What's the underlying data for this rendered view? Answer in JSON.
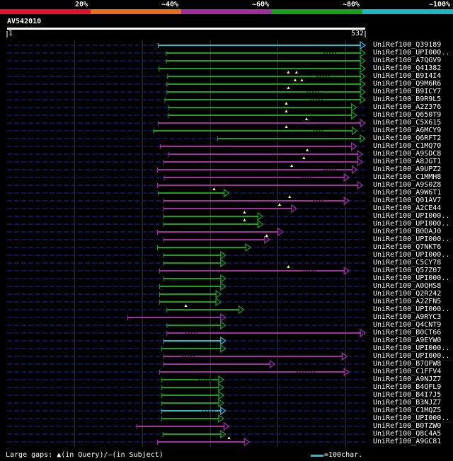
{
  "identity_legend": [
    {
      "label": "20%",
      "color": "#e8102c"
    },
    {
      "label": "~40%",
      "color": "#e86f17"
    },
    {
      "label": "~60%",
      "color": "#a030a0"
    },
    {
      "label": "~80%",
      "color": "#1aa01a"
    },
    {
      "label": "~100%",
      "color": "#1ab8c4"
    }
  ],
  "query": {
    "id": "AV542010",
    "start": "1",
    "end": "532"
  },
  "hits": [
    {
      "name": "UniRef100_Q39189",
      "start": 225,
      "end": 532,
      "color": "#22c2cc",
      "qgaps": [],
      "sgaps": []
    },
    {
      "name": "UniRef100_UPI000..",
      "start": 237,
      "end": 532,
      "color": "#1aa01a",
      "qgaps": [],
      "sgaps": [
        [
          470,
          490
        ]
      ]
    },
    {
      "name": "UniRef100_A7QGV9",
      "start": 237,
      "end": 532,
      "color": "#1aa01a",
      "qgaps": [],
      "sgaps": []
    },
    {
      "name": "UniRef100_Q41382",
      "start": 226,
      "end": 532,
      "color": "#1aa01a",
      "qgaps": [],
      "sgaps": []
    },
    {
      "name": "UniRef100_B9I4I4",
      "start": 239,
      "end": 532,
      "color": "#1aa01a",
      "qgaps": [
        418,
        430
      ],
      "sgaps": [
        [
          460,
          480
        ]
      ]
    },
    {
      "name": "UniRef100_Q9M6R6",
      "start": 238,
      "end": 532,
      "color": "#1aa01a",
      "qgaps": [
        428,
        438
      ],
      "sgaps": []
    },
    {
      "name": "UniRef100_B9ICY7",
      "start": 238,
      "end": 532,
      "color": "#1aa01a",
      "qgaps": [
        418
      ],
      "sgaps": [
        [
          445,
          465
        ]
      ]
    },
    {
      "name": "UniRef100_B9R9L5",
      "start": 235,
      "end": 532,
      "color": "#1aa01a",
      "qgaps": [],
      "sgaps": [
        [
          450,
          470
        ]
      ]
    },
    {
      "name": "UniRef100_A2Z376",
      "start": 240,
      "end": 519,
      "color": "#1aa01a",
      "qgaps": [
        415
      ],
      "sgaps": []
    },
    {
      "name": "UniRef100_Q650T9",
      "start": 240,
      "end": 519,
      "color": "#1aa01a",
      "qgaps": [
        415
      ],
      "sgaps": []
    },
    {
      "name": "UniRef100_C5X615",
      "start": 225,
      "end": 532,
      "color": "#a030a0",
      "qgaps": [
        445
      ],
      "sgaps": []
    },
    {
      "name": "UniRef100_A6MCY9",
      "start": 218,
      "end": 520,
      "color": "#1aa01a",
      "qgaps": [
        415
      ],
      "sgaps": [
        [
          455,
          470
        ]
      ]
    },
    {
      "name": "UniRef100_Q6RFT2",
      "start": 313,
      "end": 532,
      "color": "#1aa01a",
      "qgaps": [],
      "sgaps": []
    },
    {
      "name": "UniRef100_C1MQ70",
      "start": 228,
      "end": 519,
      "color": "#a030a0",
      "qgaps": [],
      "sgaps": []
    },
    {
      "name": "UniRef100_A9SDC8",
      "start": 240,
      "end": 528,
      "color": "#a030a0",
      "qgaps": [
        446
      ],
      "sgaps": []
    },
    {
      "name": "UniRef100_A8JGT1",
      "start": 233,
      "end": 528,
      "color": "#a030a0",
      "qgaps": [
        441
      ],
      "sgaps": []
    },
    {
      "name": "UniRef100_A9UPZ2",
      "start": 224,
      "end": 520,
      "color": "#a030a0",
      "qgaps": [
        423
      ],
      "sgaps": [
        [
          470,
          490
        ]
      ]
    },
    {
      "name": "UniRef100_C1MMH8",
      "start": 234,
      "end": 508,
      "color": "#a030a0",
      "qgaps": [],
      "sgaps": [
        [
          438,
          455
        ]
      ]
    },
    {
      "name": "UniRef100_A9S0Z8",
      "start": 224,
      "end": 528,
      "color": "#a030a0",
      "qgaps": [],
      "sgaps": []
    },
    {
      "name": "UniRef100_A9W6T1",
      "start": 225,
      "end": 330,
      "color": "#1aa01a",
      "qgaps": [
        308
      ],
      "sgaps": []
    },
    {
      "name": "UniRef100_Q01AV7",
      "start": 233,
      "end": 508,
      "color": "#a030a0",
      "qgaps": [
        420
      ],
      "sgaps": [
        [
          455,
          470
        ]
      ]
    },
    {
      "name": "UniRef100_A2CE44",
      "start": 233,
      "end": 430,
      "color": "#a030a0",
      "qgaps": [
        405
      ],
      "sgaps": []
    },
    {
      "name": "UniRef100_UPI000..",
      "start": 233,
      "end": 380,
      "color": "#1aa01a",
      "qgaps": [
        353
      ],
      "sgaps": []
    },
    {
      "name": "UniRef100_UPI000..",
      "start": 233,
      "end": 380,
      "color": "#1aa01a",
      "qgaps": [
        353
      ],
      "sgaps": []
    },
    {
      "name": "UniRef100_B0DAJ0",
      "start": 224,
      "end": 410,
      "color": "#a030a0",
      "qgaps": [],
      "sgaps": []
    },
    {
      "name": "UniRef100_UPI000..",
      "start": 233,
      "end": 390,
      "color": "#a030a0",
      "qgaps": [
        386
      ],
      "sgaps": []
    },
    {
      "name": "UniRef100_Q7NKT6",
      "start": 224,
      "end": 362,
      "color": "#1aa01a",
      "qgaps": [],
      "sgaps": []
    },
    {
      "name": "UniRef100_UPI000..",
      "start": 233,
      "end": 325,
      "color": "#1aa01a",
      "qgaps": [],
      "sgaps": []
    },
    {
      "name": "UniRef100_C5CY78",
      "start": 233,
      "end": 325,
      "color": "#1aa01a",
      "qgaps": [],
      "sgaps": []
    },
    {
      "name": "UniRef100_Q57Z07",
      "start": 227,
      "end": 508,
      "color": "#a030a0",
      "qgaps": [
        418
      ],
      "sgaps": [
        [
          440,
          460
        ]
      ]
    },
    {
      "name": "UniRef100_UPI000..",
      "start": 233,
      "end": 325,
      "color": "#1aa01a",
      "qgaps": [],
      "sgaps": []
    },
    {
      "name": "UniRef100_A0QHS8",
      "start": 227,
      "end": 325,
      "color": "#1aa01a",
      "qgaps": [],
      "sgaps": []
    },
    {
      "name": "UniRef100_Q2R242",
      "start": 227,
      "end": 318,
      "color": "#1aa01a",
      "qgaps": [],
      "sgaps": []
    },
    {
      "name": "UniRef100_A2ZFN5",
      "start": 227,
      "end": 318,
      "color": "#1aa01a",
      "qgaps": [],
      "sgaps": []
    },
    {
      "name": "UniRef100_UPI000..",
      "start": 238,
      "end": 352,
      "color": "#1aa01a",
      "qgaps": [
        266
      ],
      "sgaps": []
    },
    {
      "name": "UniRef100_A9RYC3",
      "start": 180,
      "end": 325,
      "color": "#a030a0",
      "qgaps": [],
      "sgaps": []
    },
    {
      "name": "UniRef100_Q4CNT9",
      "start": 238,
      "end": 325,
      "color": "#1aa01a",
      "qgaps": [],
      "sgaps": []
    },
    {
      "name": "UniRef100_B0CT66",
      "start": 238,
      "end": 532,
      "color": "#a030a0",
      "qgaps": [],
      "sgaps": [
        [
          265,
          285
        ]
      ]
    },
    {
      "name": "UniRef100_A9EYW0",
      "start": 233,
      "end": 325,
      "color": "#22c2cc",
      "qgaps": [],
      "sgaps": []
    },
    {
      "name": "UniRef100_UPI000..",
      "start": 230,
      "end": 325,
      "color": "#1aa01a",
      "qgaps": [],
      "sgaps": []
    },
    {
      "name": "UniRef100_UPI000..",
      "start": 233,
      "end": 505,
      "color": "#a030a0",
      "qgaps": [],
      "sgaps": [
        [
          260,
          280
        ]
      ]
    },
    {
      "name": "UniRef100_B7QFW8",
      "start": 233,
      "end": 398,
      "color": "#a030a0",
      "qgaps": [],
      "sgaps": []
    },
    {
      "name": "UniRef100_C1FFV4",
      "start": 227,
      "end": 508,
      "color": "#a030a0",
      "qgaps": [],
      "sgaps": [
        [
          430,
          460
        ]
      ]
    },
    {
      "name": "UniRef100_A9NJZ7",
      "start": 230,
      "end": 322,
      "color": "#1aa01a",
      "qgaps": [],
      "sgaps": [
        [
          285,
          305
        ]
      ]
    },
    {
      "name": "UniRef100_B4QFL9",
      "start": 230,
      "end": 322,
      "color": "#1aa01a",
      "qgaps": [],
      "sgaps": []
    },
    {
      "name": "UniRef100_B4I7J5",
      "start": 230,
      "end": 322,
      "color": "#1aa01a",
      "qgaps": [],
      "sgaps": []
    },
    {
      "name": "UniRef100_B3NJZ7",
      "start": 230,
      "end": 322,
      "color": "#1aa01a",
      "qgaps": [],
      "sgaps": []
    },
    {
      "name": "UniRef100_C1MQZ5",
      "start": 230,
      "end": 325,
      "color": "#22c2cc",
      "qgaps": [],
      "sgaps": [
        [
          290,
          310
        ]
      ]
    },
    {
      "name": "UniRef100_UPI000..",
      "start": 230,
      "end": 322,
      "color": "#1aa01a",
      "qgaps": [],
      "sgaps": []
    },
    {
      "name": "UniRef100_B0TZW0",
      "start": 193,
      "end": 330,
      "color": "#a030a0",
      "qgaps": [],
      "sgaps": []
    },
    {
      "name": "UniRef100_Q8C4A5",
      "start": 232,
      "end": 325,
      "color": "#1aa01a",
      "qgaps": [],
      "sgaps": []
    },
    {
      "name": "UniRef100_A9GC81",
      "start": 224,
      "end": 360,
      "color": "#a030a0",
      "qgaps": [
        330
      ],
      "sgaps": []
    }
  ],
  "legend": {
    "text": "Large gaps: ▲(in Query)/—(in Subject)"
  },
  "scale": {
    "label": "=100char."
  }
}
